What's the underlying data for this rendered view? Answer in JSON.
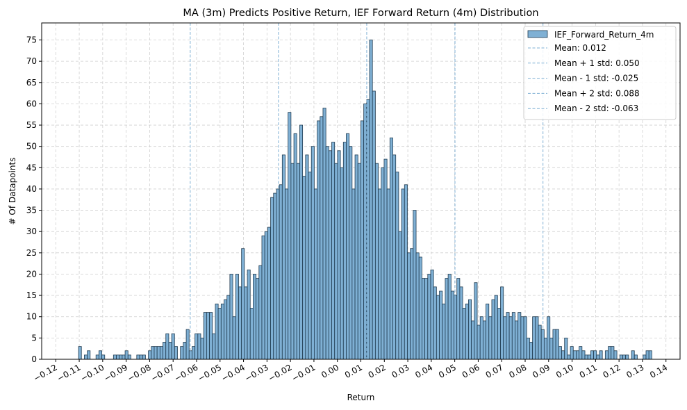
{
  "chart_data": {
    "type": "bar",
    "title": "MA (3m) Predicts Positive Return, IEF Forward Return (4m) Distribution",
    "xlabel": "Return",
    "ylabel": "# Of Datapoints",
    "xlim": [
      -0.126,
      0.146
    ],
    "ylim": [
      0,
      79
    ],
    "grid": true,
    "legend_position": "top-right",
    "x_tick_labels": [
      "−0.12",
      "−0.11",
      "−0.10",
      "−0.09",
      "−0.08",
      "−0.07",
      "−0.06",
      "−0.05",
      "−0.04",
      "−0.03",
      "−0.02",
      "−0.01",
      "0.00",
      "0.01",
      "0.02",
      "0.03",
      "0.04",
      "0.05",
      "0.06",
      "0.07",
      "0.08",
      "0.09",
      "0.10",
      "0.11",
      "0.12",
      "0.13",
      "0.14"
    ],
    "x_tick_values": [
      -0.12,
      -0.11,
      -0.1,
      -0.09,
      -0.08,
      -0.07,
      -0.06,
      -0.05,
      -0.04,
      -0.03,
      -0.02,
      -0.01,
      0.0,
      0.01,
      0.02,
      0.03,
      0.04,
      0.05,
      0.06,
      0.07,
      0.08,
      0.09,
      0.1,
      0.11,
      0.12,
      0.13,
      0.14
    ],
    "y_ticks": [
      0,
      5,
      10,
      15,
      20,
      25,
      30,
      35,
      40,
      45,
      50,
      55,
      60,
      65,
      70,
      75
    ],
    "bins": {
      "start": -0.1103,
      "width": 0.00124,
      "counts": [
        3,
        0,
        1,
        2,
        0,
        0,
        1,
        2,
        1,
        0,
        0,
        0,
        1,
        1,
        1,
        1,
        2,
        1,
        0,
        0,
        1,
        1,
        1,
        0,
        2,
        3,
        3,
        3,
        3,
        4,
        6,
        4,
        6,
        3,
        0,
        3,
        4,
        7,
        2,
        3,
        6,
        6,
        5,
        11,
        11,
        11,
        6,
        13,
        12,
        13,
        14,
        15,
        20,
        10,
        20,
        17,
        26,
        17,
        21,
        12,
        20,
        19,
        22,
        29,
        30,
        31,
        38,
        39,
        40,
        41,
        48,
        40,
        58,
        46,
        53,
        46,
        55,
        43,
        48,
        44,
        50,
        40,
        56,
        57,
        59,
        50,
        49,
        51,
        46,
        49,
        45,
        51,
        53,
        50,
        40,
        48,
        46,
        56,
        60,
        61,
        75,
        63,
        46,
        40,
        45,
        47,
        40,
        52,
        48,
        44,
        30,
        40,
        41,
        25,
        26,
        35,
        25,
        24,
        19,
        19,
        20,
        21,
        17,
        15,
        16,
        13,
        19,
        20,
        16,
        15,
        19,
        17,
        12,
        13,
        14,
        9,
        18,
        8,
        10,
        9,
        13,
        10,
        14,
        15,
        12,
        17,
        10,
        11,
        10,
        11,
        9,
        11,
        10,
        10,
        5,
        4,
        10,
        10,
        8,
        7,
        5,
        10,
        5,
        7,
        7,
        3,
        2,
        5,
        1,
        3,
        2,
        2,
        3,
        2,
        1,
        1,
        2,
        2,
        1,
        2,
        0,
        2,
        3,
        3,
        2,
        0,
        1,
        1,
        1,
        0,
        2,
        1,
        0,
        0,
        1,
        2,
        2
      ],
      "label": "IEF_Forward_Return_4m",
      "color": "#7fb0d4",
      "edgecolor": "#1f3a4f"
    },
    "lines": [
      {
        "label": "Mean: 0.012",
        "x": 0.0125
      },
      {
        "label": "Mean + 1 std: 0.050",
        "x": 0.0501
      },
      {
        "label": "Mean - 1 std: -0.025",
        "x": -0.0251
      },
      {
        "label": "Mean + 2 std: 0.088",
        "x": 0.0876
      },
      {
        "label": "Mean - 2 std: -0.063",
        "x": -0.0627
      }
    ],
    "line_color": "#7fb0d4"
  }
}
